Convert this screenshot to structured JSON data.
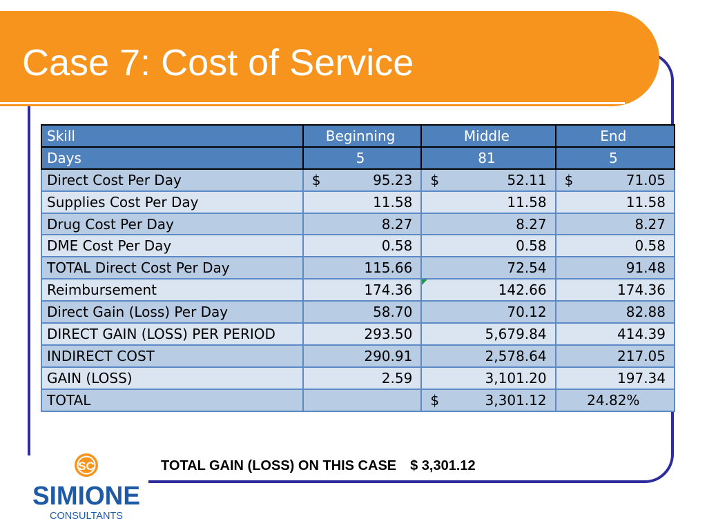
{
  "slide": {
    "title": "Case 7: Cost of Service"
  },
  "table": {
    "headers": [
      "Skill",
      "Beginning",
      "Middle",
      "End"
    ],
    "days": {
      "label": "Days",
      "values": [
        "5",
        "81",
        "5"
      ]
    },
    "rows": [
      {
        "label": "Direct Cost Per Day",
        "currency": "$",
        "values": [
          "95.23",
          "52.11",
          "71.05"
        ]
      },
      {
        "label": "Supplies Cost Per Day",
        "values": [
          "11.58",
          "11.58",
          "11.58"
        ]
      },
      {
        "label": "Drug Cost Per Day",
        "values": [
          "8.27",
          "8.27",
          "8.27"
        ]
      },
      {
        "label": "DME Cost Per Day",
        "values": [
          "0.58",
          "0.58",
          "0.58"
        ]
      },
      {
        "label": "TOTAL Direct Cost Per Day",
        "values": [
          "115.66",
          "72.54",
          "91.48"
        ]
      },
      {
        "label": "Reimbursement",
        "values": [
          "174.36",
          "142.66",
          "174.36"
        ]
      },
      {
        "label": "Direct Gain (Loss) Per Day",
        "values": [
          "58.70",
          "70.12",
          "82.88"
        ]
      },
      {
        "label": "DIRECT GAIN (LOSS) PER PERIOD",
        "values": [
          "293.50",
          "5,679.84",
          "414.39"
        ]
      },
      {
        "label": "INDIRECT COST",
        "values": [
          "290.91",
          "2,578.64",
          "217.05"
        ]
      },
      {
        "label": "GAIN (LOSS)",
        "values": [
          "2.59",
          "3,101.20",
          "197.34"
        ]
      }
    ],
    "total": {
      "label": "TOTAL",
      "beginning": "",
      "currency": "$",
      "middle": "3,301.12",
      "end": "24.82%"
    }
  },
  "summary": {
    "label": "TOTAL GAIN (LOSS) ON THIS CASE",
    "amount": "$ 3,301.12"
  },
  "logo": {
    "monogram": "SC",
    "name": "SIMIONE",
    "tagline": "CONSULTANTS"
  },
  "colors": {
    "title_bar": "#f7941d",
    "frame": "#2e2c9c",
    "header": "#4f81bd",
    "band": "#b8cce4",
    "plain": "#dbe5f1",
    "logo_orange": "#f7941d",
    "logo_blue": "#1f5aa6"
  }
}
